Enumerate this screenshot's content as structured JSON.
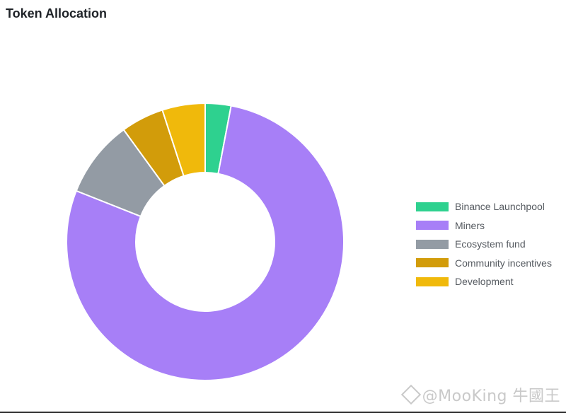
{
  "chart_data": {
    "type": "pie",
    "title": "Token Allocation",
    "donut": true,
    "legend_position": "right",
    "categories": [
      "Binance Launchpool",
      "Miners",
      "Ecosystem fund",
      "Community incentives",
      "Development"
    ],
    "values": [
      3,
      78,
      9,
      5,
      5
    ],
    "unit": "%",
    "colors": [
      "#2ed18f",
      "#a77ff7",
      "#939ba4",
      "#d29c0a",
      "#f0b90b"
    ]
  },
  "watermark": {
    "text": "@MooKing 牛國王",
    "icon": "binance-diamond-icon"
  }
}
